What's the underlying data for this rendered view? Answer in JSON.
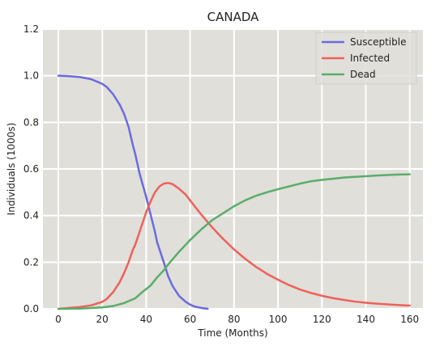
{
  "chart_data": {
    "type": "line",
    "title": "CANADA",
    "xlabel": "Time (Months)",
    "ylabel": "Individuals (1000s)",
    "xlim": [
      -7,
      166
    ],
    "ylim": [
      0,
      1.2
    ],
    "xticks": [
      0,
      20,
      40,
      60,
      80,
      100,
      120,
      140,
      160
    ],
    "yticks": [
      0.0,
      0.2,
      0.4,
      0.6,
      0.8,
      1.0,
      1.2
    ],
    "xtick_labels": [
      "0",
      "20",
      "40",
      "60",
      "80",
      "100",
      "120",
      "140",
      "160"
    ],
    "ytick_labels": [
      "0.0",
      "0.2",
      "0.4",
      "0.6",
      "0.8",
      "1.0",
      "1.2"
    ],
    "grid": true,
    "legend_position": "top-right",
    "background": "#e0dfd9",
    "series": [
      {
        "name": "Susceptible",
        "color": "#6b6be0",
        "points": [
          [
            0,
            1.0
          ],
          [
            5,
            0.998
          ],
          [
            10,
            0.994
          ],
          [
            15,
            0.985
          ],
          [
            20,
            0.965
          ],
          [
            22,
            0.952
          ],
          [
            25,
            0.92
          ],
          [
            28,
            0.875
          ],
          [
            30,
            0.835
          ],
          [
            32,
            0.78
          ],
          [
            34,
            0.7
          ],
          [
            35,
            0.665
          ],
          [
            37,
            0.58
          ],
          [
            40,
            0.48
          ],
          [
            42,
            0.405
          ],
          [
            44,
            0.33
          ],
          [
            45,
            0.285
          ],
          [
            48,
            0.2
          ],
          [
            50,
            0.14
          ],
          [
            52,
            0.098
          ],
          [
            55,
            0.055
          ],
          [
            58,
            0.03
          ],
          [
            60,
            0.018
          ],
          [
            62,
            0.01
          ],
          [
            65,
            0.004
          ],
          [
            68,
            0.0
          ]
        ]
      },
      {
        "name": "Infected",
        "color": "#f0605a",
        "points": [
          [
            0,
            0.0
          ],
          [
            10,
            0.008
          ],
          [
            15,
            0.015
          ],
          [
            20,
            0.03
          ],
          [
            22,
            0.042
          ],
          [
            25,
            0.072
          ],
          [
            28,
            0.115
          ],
          [
            30,
            0.155
          ],
          [
            32,
            0.2
          ],
          [
            34,
            0.255
          ],
          [
            35,
            0.275
          ],
          [
            37,
            0.33
          ],
          [
            40,
            0.415
          ],
          [
            42,
            0.46
          ],
          [
            44,
            0.5
          ],
          [
            46,
            0.525
          ],
          [
            48,
            0.537
          ],
          [
            50,
            0.54
          ],
          [
            52,
            0.535
          ],
          [
            55,
            0.515
          ],
          [
            58,
            0.49
          ],
          [
            60,
            0.465
          ],
          [
            65,
            0.405
          ],
          [
            70,
            0.35
          ],
          [
            75,
            0.3
          ],
          [
            80,
            0.255
          ],
          [
            85,
            0.215
          ],
          [
            90,
            0.18
          ],
          [
            95,
            0.15
          ],
          [
            100,
            0.125
          ],
          [
            105,
            0.102
          ],
          [
            110,
            0.083
          ],
          [
            115,
            0.068
          ],
          [
            120,
            0.056
          ],
          [
            125,
            0.046
          ],
          [
            130,
            0.038
          ],
          [
            135,
            0.031
          ],
          [
            140,
            0.026
          ],
          [
            145,
            0.022
          ],
          [
            150,
            0.019
          ],
          [
            155,
            0.016
          ],
          [
            160,
            0.014
          ]
        ]
      },
      {
        "name": "Dead",
        "color": "#5aad6a",
        "points": [
          [
            0,
            0.0
          ],
          [
            10,
            0.001
          ],
          [
            20,
            0.006
          ],
          [
            25,
            0.012
          ],
          [
            30,
            0.025
          ],
          [
            35,
            0.045
          ],
          [
            38,
            0.07
          ],
          [
            40,
            0.085
          ],
          [
            42,
            0.1
          ],
          [
            45,
            0.135
          ],
          [
            48,
            0.165
          ],
          [
            50,
            0.19
          ],
          [
            55,
            0.245
          ],
          [
            60,
            0.295
          ],
          [
            65,
            0.34
          ],
          [
            70,
            0.38
          ],
          [
            75,
            0.41
          ],
          [
            80,
            0.44
          ],
          [
            85,
            0.465
          ],
          [
            90,
            0.485
          ],
          [
            95,
            0.5
          ],
          [
            100,
            0.513
          ],
          [
            105,
            0.525
          ],
          [
            110,
            0.537
          ],
          [
            115,
            0.547
          ],
          [
            120,
            0.553
          ],
          [
            125,
            0.558
          ],
          [
            130,
            0.563
          ],
          [
            135,
            0.566
          ],
          [
            140,
            0.569
          ],
          [
            145,
            0.572
          ],
          [
            150,
            0.574
          ],
          [
            155,
            0.576
          ],
          [
            160,
            0.577
          ]
        ]
      }
    ]
  }
}
